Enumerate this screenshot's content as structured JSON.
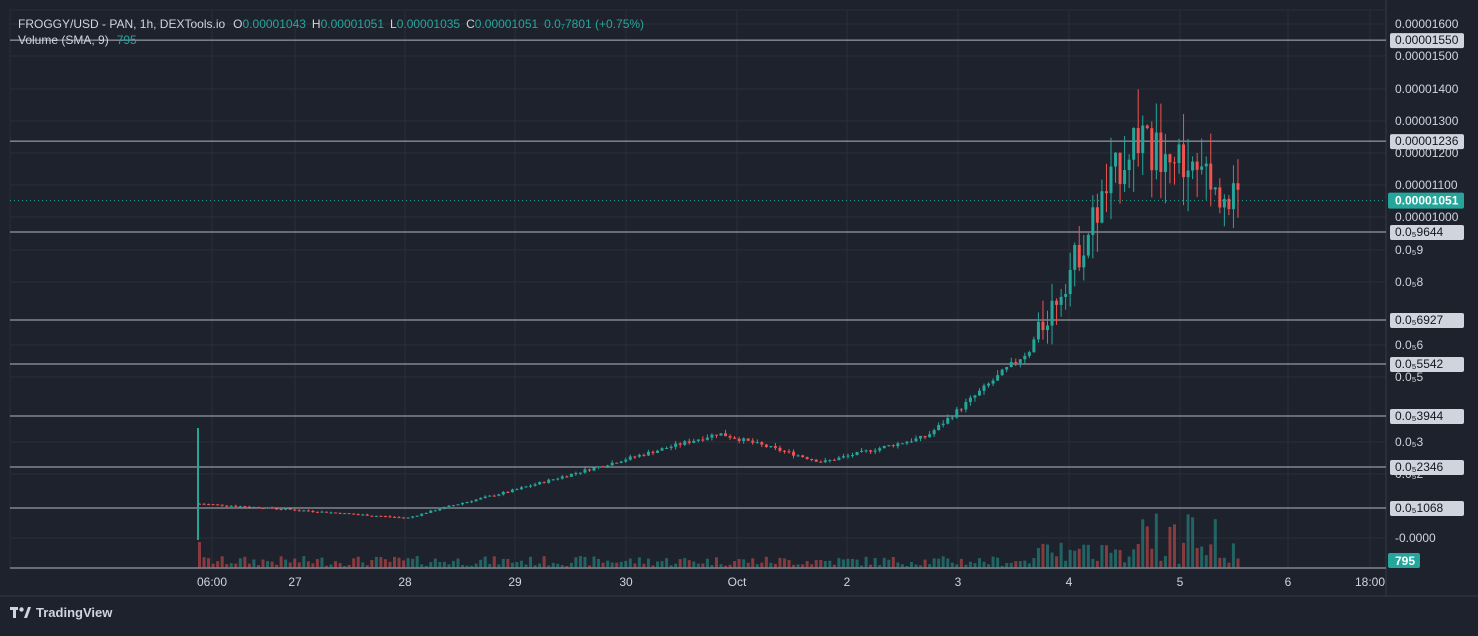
{
  "legend": {
    "symbol": "FROGGY/USD - PAN, 1h, DEXTools.io",
    "o_label": "O",
    "o_value": "0.00001043",
    "h_label": "H",
    "h_value": "0.00001051",
    "l_label": "L",
    "l_value": "0.00001035",
    "c_label": "C",
    "c_value": "0.00001051",
    "change": "0.0₇7801 (+0.75%)",
    "volume_label": "Volume (SMA, 9)",
    "volume_value": "795"
  },
  "footer": {
    "brand": "TradingView"
  },
  "colors": {
    "background": "#1e222d",
    "up": "#26a69a",
    "down": "#ef5350",
    "grid": "#2a2e39",
    "text": "#d1d4dc"
  },
  "price_axis": {
    "ticks": [
      "0.00001600",
      "0.00001500",
      "0.00001400",
      "0.00001300",
      "0.00001200",
      "0.00001100",
      "0.00001000",
      "0.0₅9",
      "0.0₅8",
      "0.0₅6",
      "0.0₅5",
      "0.0₅3",
      "0.0₅2",
      "-0.0000"
    ],
    "current_price": "0.00001051",
    "volume_badge": "795"
  },
  "levels": [
    {
      "label": "0.00001550"
    },
    {
      "label": "0.00001236"
    },
    {
      "label": "0.0₅9644"
    },
    {
      "label": "0.0₅6927"
    },
    {
      "label": "0.0₅5542"
    },
    {
      "label": "0.0₅3944"
    },
    {
      "label": "0.0₅2346"
    },
    {
      "label": "0.0₅1068"
    }
  ],
  "time_axis": {
    "ticks": [
      "06:00",
      "27",
      "28",
      "29",
      "30",
      "Oct",
      "2",
      "3",
      "4",
      "5",
      "6",
      "18:00"
    ]
  },
  "chart_data": {
    "type": "candlestick",
    "title": "FROGGY/USD - PAN, 1h, DEXTools.io",
    "ohlc_last": {
      "open": 1.043e-05,
      "high": 1.051e-05,
      "low": 1.035e-05,
      "close": 1.051e-05
    },
    "horizontal_levels": [
      1.55e-05,
      1.236e-05,
      9.644e-06,
      6.927e-06,
      5.542e-06,
      3.944e-06,
      2.346e-06,
      1.068e-06
    ],
    "x": [
      "26 06:00",
      "27",
      "28",
      "29",
      "30",
      "Oct 1",
      "2",
      "3",
      "4",
      "5",
      "6 18:00"
    ],
    "close_approx": [
      1.2e-06,
      1e-06,
      8e-07,
      1.6e-06,
      2.5e-06,
      3.4e-06,
      2.5e-06,
      3.3e-06,
      6e-06,
      1.25e-05,
      1.051e-05
    ],
    "volume_sma": 795
  }
}
